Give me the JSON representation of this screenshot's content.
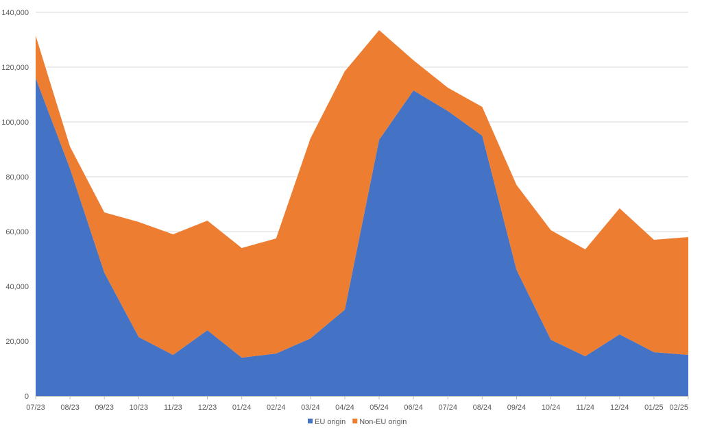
{
  "chart_data": {
    "type": "area",
    "stacked": true,
    "categories": [
      "07/23",
      "08/23",
      "09/23",
      "10/23",
      "11/23",
      "12/23",
      "01/24",
      "02/24",
      "03/24",
      "04/24",
      "05/24",
      "06/24",
      "07/24",
      "08/24",
      "09/24",
      "10/24",
      "11/24",
      "12/24",
      "01/25",
      "02/25"
    ],
    "series": [
      {
        "name": "EU origin",
        "color": "#4472C4",
        "values": [
          116000,
          83000,
          45000,
          21500,
          15000,
          24000,
          14000,
          15500,
          21000,
          31500,
          93500,
          111500,
          104000,
          95000,
          46000,
          20500,
          14500,
          22500,
          16000,
          15000
        ]
      },
      {
        "name": "Non-EU origin",
        "color": "#ED7D31",
        "values": [
          15500,
          8000,
          22000,
          42000,
          44000,
          40000,
          40000,
          42000,
          73000,
          87000,
          40000,
          11000,
          8500,
          10500,
          31000,
          40000,
          39000,
          46000,
          41000,
          43000
        ]
      }
    ],
    "yticks": [
      "0",
      "20,000",
      "40,000",
      "60,000",
      "80,000",
      "100,000",
      "120,000",
      "140,000"
    ],
    "ylim": [
      0,
      140000
    ],
    "title": "",
    "xlabel": "",
    "ylabel": "",
    "grid": true,
    "legend_position": "bottom"
  }
}
